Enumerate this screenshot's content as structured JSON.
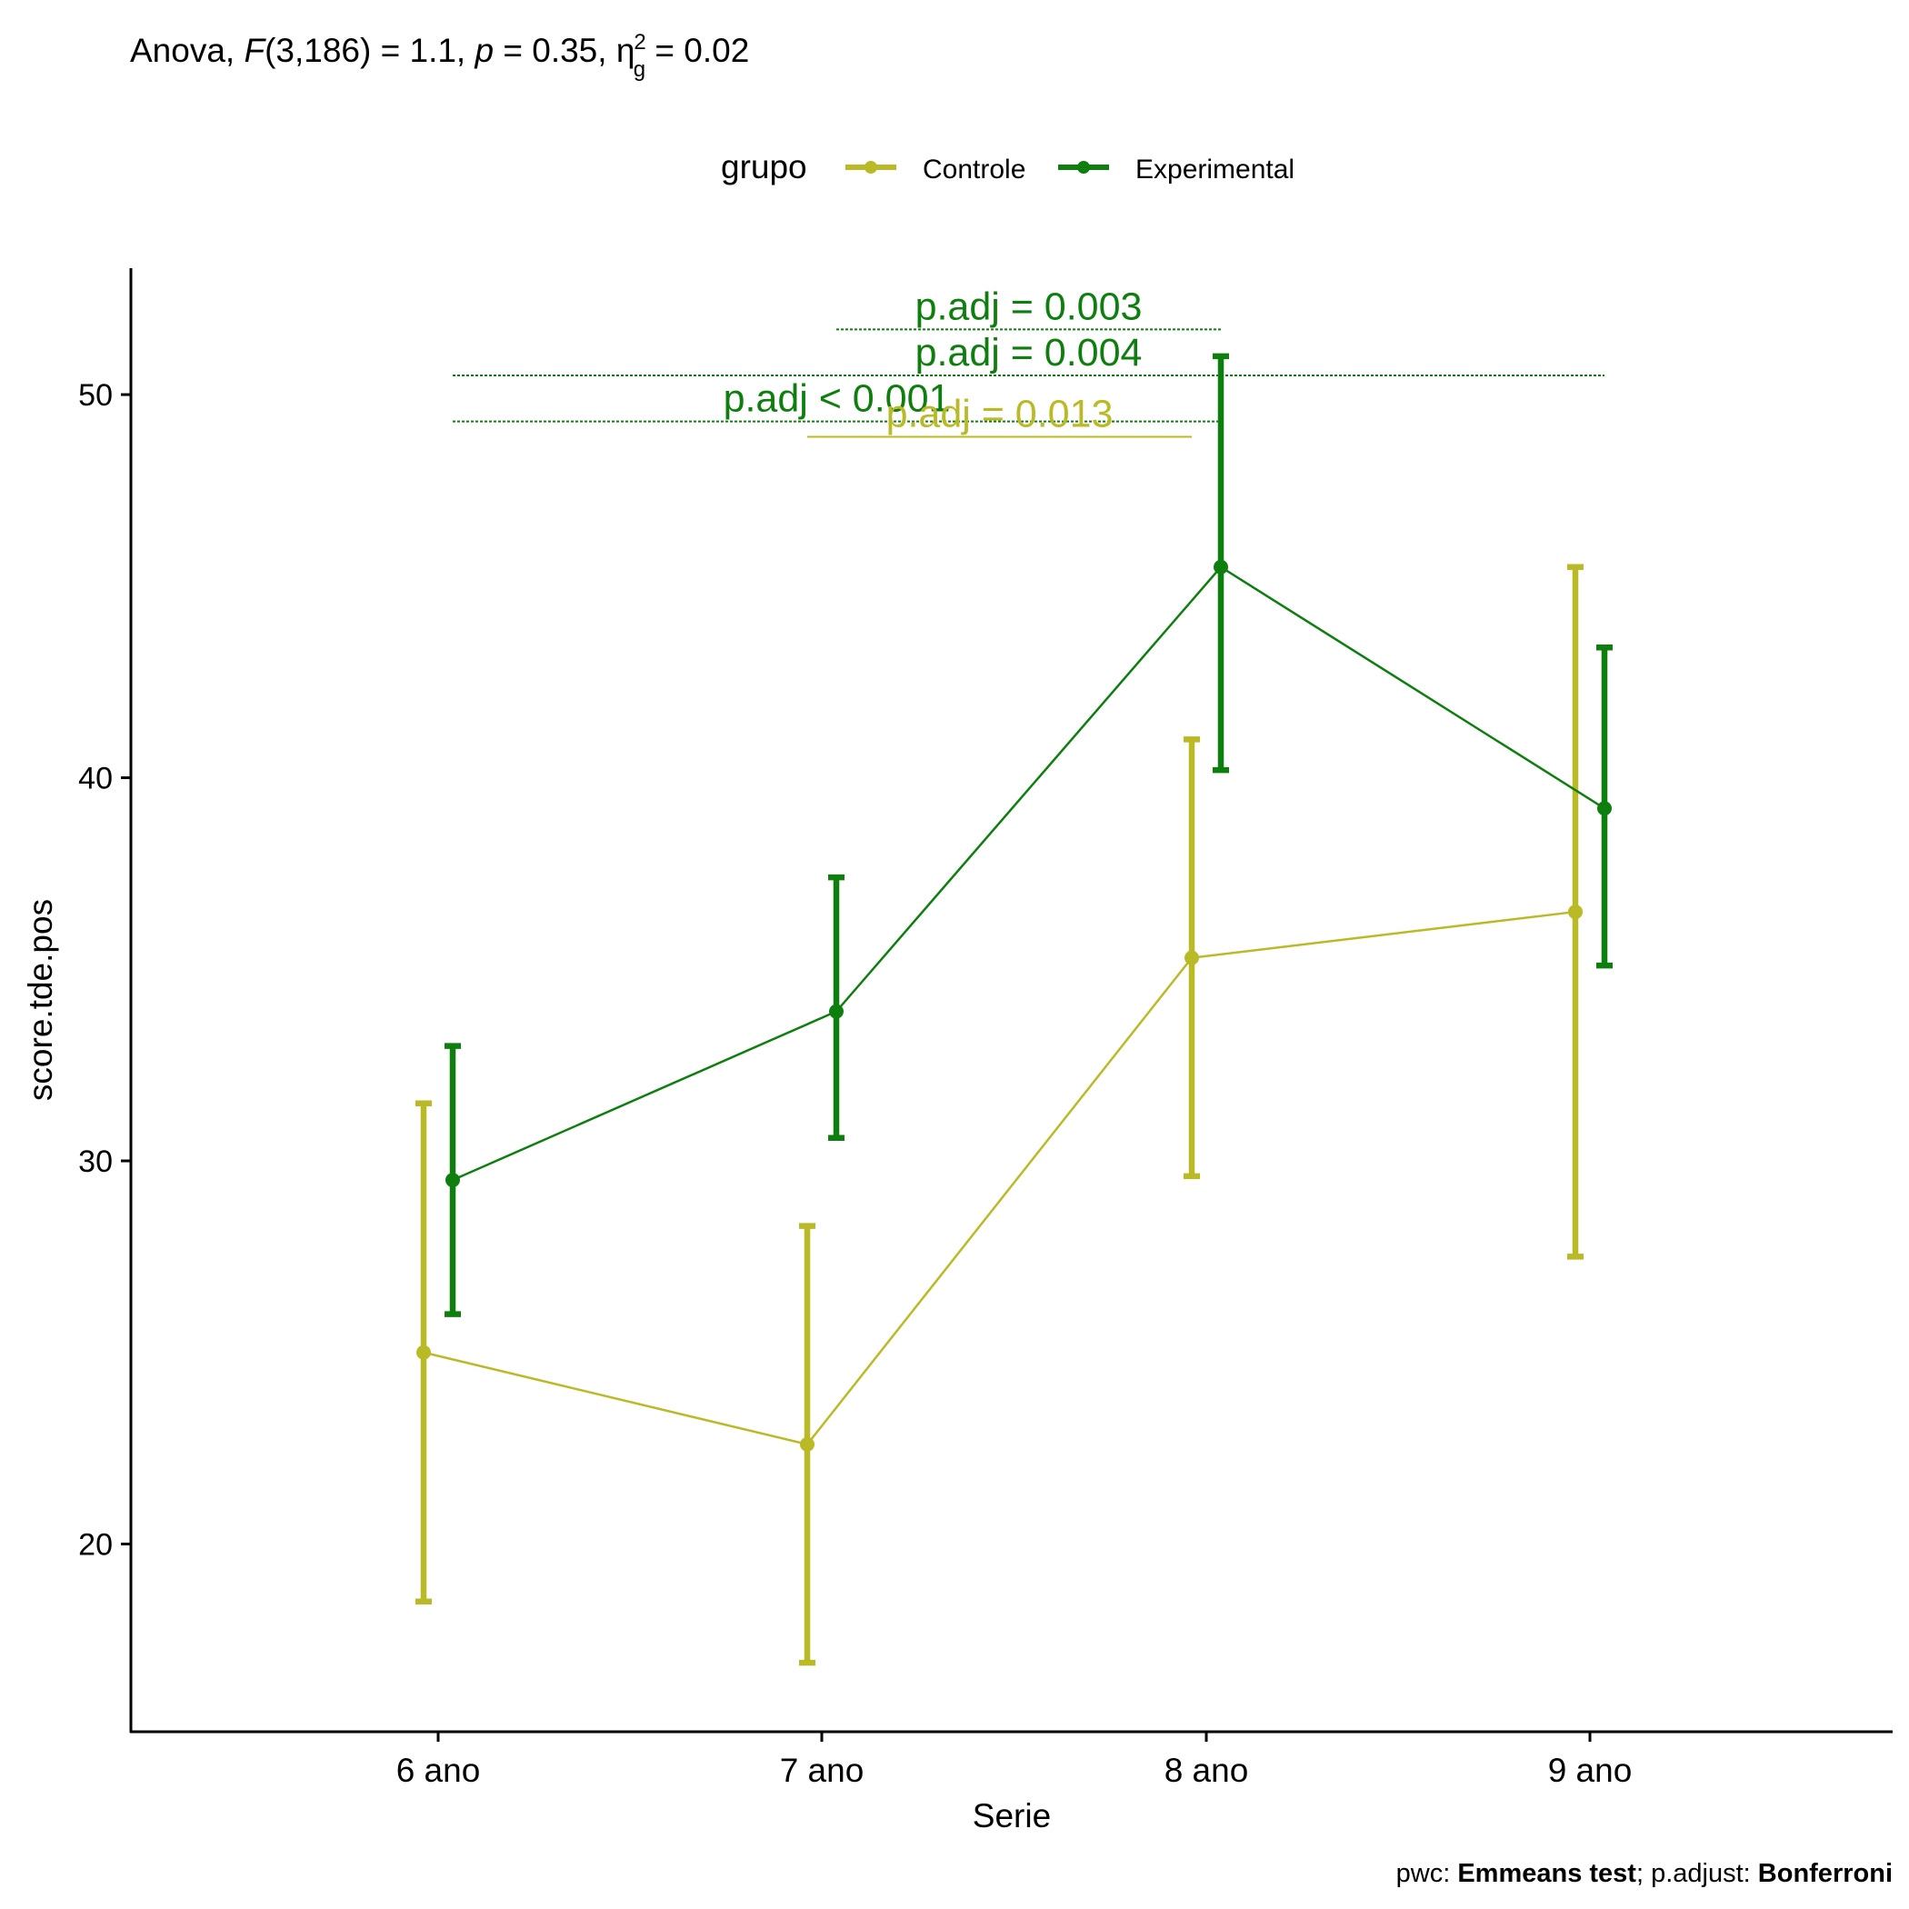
{
  "chart_data": {
    "type": "line",
    "title": {
      "prefix": "Anova, ",
      "f_symbol": "F",
      "f_args": "(3,186) = 1.1, ",
      "p_symbol": "p",
      "p_rest": " = 0.35, ",
      "eta_symbol": "η",
      "eta_sup": "2",
      "eta_sub": "g",
      "eta_rest": " = 0.02"
    },
    "legend": {
      "title": "grupo",
      "position": "top",
      "entries": [
        {
          "label": "Controle",
          "color": "#BABA27"
        },
        {
          "label": "Experimental",
          "color": "#0E7F0E"
        }
      ]
    },
    "xlabel": "Serie",
    "ylabel": "score.tde.pos",
    "categories": [
      "6 ano",
      "7 ano",
      "8 ano",
      "9 ano"
    ],
    "yticks": [
      "20",
      "30",
      "40",
      "50"
    ],
    "ylim": [
      15.1,
      53.3
    ],
    "series": [
      {
        "name": "Controle",
        "color": "#BABA27",
        "mean": [
          25.0,
          22.6,
          35.3,
          36.5
        ],
        "lower": [
          18.5,
          16.9,
          29.6,
          27.5
        ],
        "upper": [
          31.5,
          28.3,
          41.0,
          45.5
        ]
      },
      {
        "name": "Experimental",
        "color": "#0E7F0E",
        "mean": [
          29.5,
          33.9,
          45.5,
          39.2
        ],
        "lower": [
          26.0,
          30.6,
          40.2,
          35.1
        ],
        "upper": [
          33.0,
          37.4,
          51.0,
          43.4
        ]
      }
    ],
    "annotations": [
      {
        "label": "p.adj = 0.003",
        "group": "Experimental",
        "from": "7 ano",
        "to": "8 ano",
        "y": 51.7,
        "color": "#0E7F0E"
      },
      {
        "label": "p.adj = 0.004",
        "group": "Experimental",
        "from": "6 ano",
        "to": "9 ano",
        "y": 50.5,
        "color": "#0E7F0E"
      },
      {
        "label": "p.adj < 0.001",
        "group": "Experimental",
        "from": "6 ano",
        "to": "8 ano",
        "y": 49.3,
        "color": "#0E7F0E"
      },
      {
        "label": "p.adj = 0.013",
        "group": "Controle",
        "from": "7 ano",
        "to": "8 ano",
        "y": 48.9,
        "color": "#BABA27"
      }
    ],
    "caption": {
      "pwc_label": "pwc: ",
      "pwc_value": "Emmeans test",
      "adjust_label": "; p.adjust: ",
      "adjust_value": "Bonferroni"
    }
  }
}
